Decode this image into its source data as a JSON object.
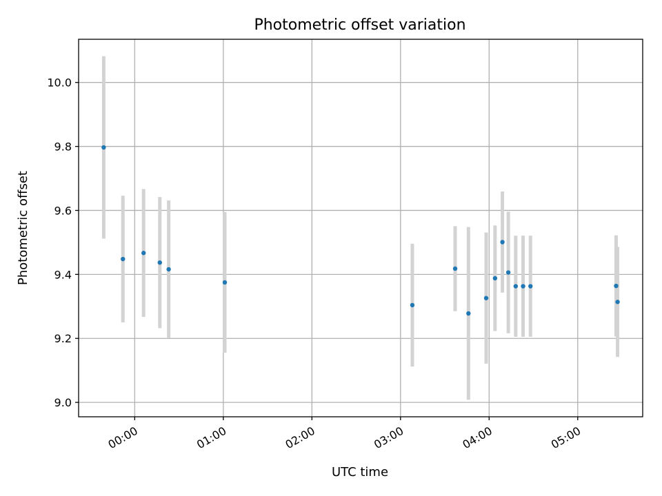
{
  "chart_data": {
    "type": "scatter",
    "title": "Photometric offset variation",
    "xlabel": "UTC time",
    "ylabel": "Photometric offset",
    "x_format": "HH:MM",
    "xlim": [
      "23:22",
      "05:44"
    ],
    "ylim": [
      8.955,
      10.135
    ],
    "x_ticks": [
      "00:00",
      "01:00",
      "02:00",
      "03:00",
      "04:00",
      "05:00"
    ],
    "y_ticks": [
      9.0,
      9.2,
      9.4,
      9.6,
      9.8,
      10.0
    ],
    "grid": true,
    "colors": {
      "point": "#1f77b4",
      "errorbar": "#d3d3d3",
      "grid": "#b0b0b0"
    },
    "series": [
      {
        "x": [
          "23:39",
          "23:52",
          "00:06",
          "00:17",
          "00:23",
          "01:01",
          "03:08",
          "03:37",
          "03:46",
          "03:58",
          "04:04",
          "04:09",
          "04:13",
          "04:18",
          "04:23",
          "04:28",
          "05:26",
          "05:27"
        ],
        "y": [
          9.797,
          9.448,
          9.467,
          9.437,
          9.416,
          9.375,
          9.304,
          9.418,
          9.278,
          9.326,
          9.388,
          9.501,
          9.406,
          9.363,
          9.363,
          9.363,
          9.364,
          9.314
        ],
        "err": [
          0.285,
          0.198,
          0.2,
          0.205,
          0.215,
          0.22,
          0.192,
          0.133,
          0.27,
          0.205,
          0.165,
          0.158,
          0.19,
          0.158,
          0.158,
          0.158,
          0.158,
          0.172
        ]
      }
    ]
  }
}
